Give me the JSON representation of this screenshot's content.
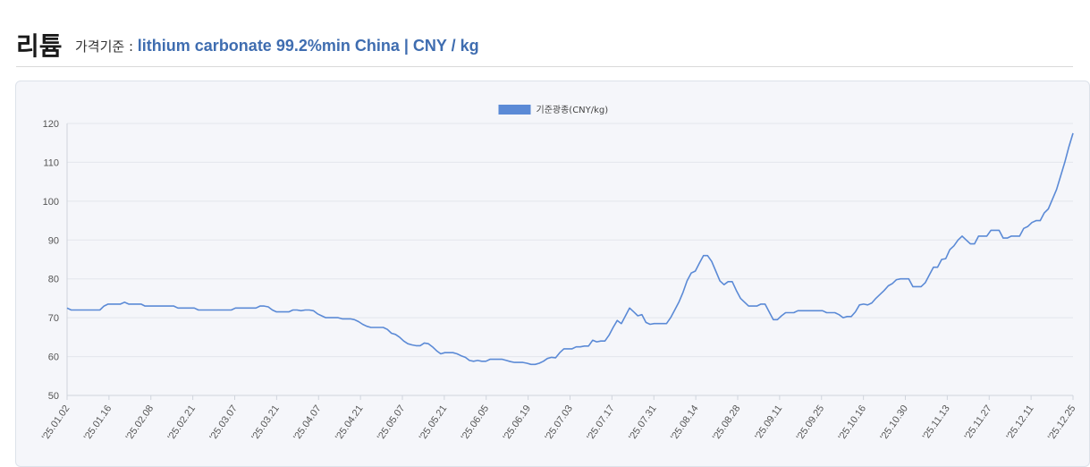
{
  "header": {
    "title": "리튬",
    "subtitle_prefix": "가격기준 : ",
    "subtitle_value": "lithium carbonate 99.2%min China | CNY / kg"
  },
  "colors": {
    "line": "#5b8ad6",
    "accent": "#3f6db0",
    "grid": "#e3e6ec"
  },
  "chart_data": {
    "type": "line",
    "title": "",
    "xlabel": "",
    "ylabel": "",
    "ylim": [
      50,
      120
    ],
    "yticks": [
      50,
      60,
      70,
      80,
      90,
      100,
      110,
      120
    ],
    "grid": true,
    "legend_position": "top-center",
    "x_tick_labels": [
      "'25.01.02",
      "'25.01.16",
      "'25.02.08",
      "'25.02.21",
      "'25.03.07",
      "'25.03.21",
      "'25.04.07",
      "'25.04.21",
      "'25.05.07",
      "'25.05.21",
      "'25.06.05",
      "'25.06.19",
      "'25.07.03",
      "'25.07.17",
      "'25.07.31",
      "'25.08.14",
      "'25.08.28",
      "'25.09.11",
      "'25.09.25",
      "'25.10.16",
      "'25.10.30",
      "'25.11.13",
      "'25.11.27",
      "'25.12.11",
      "'25.12.25"
    ],
    "series": [
      {
        "name": "기준광종(CNY/kg)",
        "values": [
          72.5,
          72,
          72,
          72,
          72,
          72,
          72,
          72,
          72,
          73,
          73.5,
          73.5,
          73.5,
          73.5,
          74,
          73.5,
          73.5,
          73.5,
          73.5,
          73,
          73,
          73,
          73,
          73,
          73,
          73,
          73,
          72.5,
          72.5,
          72.5,
          72.5,
          72.5,
          72,
          72,
          72,
          72,
          72,
          72,
          72,
          72,
          72,
          72.5,
          72.5,
          72.5,
          72.5,
          72.5,
          72.5,
          73,
          73,
          72.8,
          72,
          71.5,
          71.5,
          71.5,
          71.5,
          72,
          72,
          71.8,
          72,
          72,
          71.8,
          71,
          70.5,
          70,
          70,
          70,
          70,
          69.7,
          69.7,
          69.7,
          69.5,
          69,
          68.3,
          67.8,
          67.5,
          67.5,
          67.5,
          67.5,
          67,
          66,
          65.7,
          65,
          64,
          63.3,
          63,
          62.8,
          62.8,
          63.5,
          63.3,
          62.5,
          61.5,
          60.7,
          61,
          61,
          61,
          60.7,
          60.2,
          59.8,
          59,
          58.8,
          59,
          58.8,
          58.8,
          59.3,
          59.3,
          59.3,
          59.3,
          59,
          58.7,
          58.5,
          58.5,
          58.5,
          58.3,
          58,
          58,
          58.3,
          58.8,
          59.5,
          59.8,
          59.7,
          61,
          62,
          62,
          62,
          62.5,
          62.5,
          62.7,
          62.7,
          64.2,
          63.8,
          64,
          64,
          65.5,
          67.5,
          69.3,
          68.5,
          70.5,
          72.5,
          71.5,
          70.5,
          70.8,
          68.8,
          68.3,
          68.5,
          68.5,
          68.5,
          68.5,
          70,
          72,
          74,
          76.5,
          79.5,
          81.5,
          82,
          84,
          86,
          86,
          84.5,
          82,
          79.5,
          78.5,
          79.3,
          79.3,
          77,
          75,
          74,
          73,
          73,
          73,
          73.5,
          73.5,
          71.5,
          69.5,
          69.5,
          70.5,
          71.3,
          71.3,
          71.3,
          71.8,
          71.8,
          71.8,
          71.8,
          71.8,
          71.8,
          71.8,
          71.3,
          71.3,
          71.3,
          70.8,
          70,
          70.3,
          70.3,
          71.5,
          73.3,
          73.5,
          73.3,
          73.8,
          75,
          76,
          77,
          78.2,
          78.8,
          79.8,
          80,
          80,
          80,
          78,
          78,
          78,
          79,
          81,
          83,
          83,
          85,
          85.2,
          87.5,
          88.5,
          90,
          91,
          90,
          89,
          89,
          91,
          91,
          91,
          92.5,
          92.5,
          92.5,
          90.5,
          90.5,
          91,
          91,
          91,
          93,
          93.5,
          94.5,
          95,
          95,
          97,
          98,
          100.5,
          103,
          106.5,
          110,
          114,
          117.5
        ]
      }
    ]
  }
}
